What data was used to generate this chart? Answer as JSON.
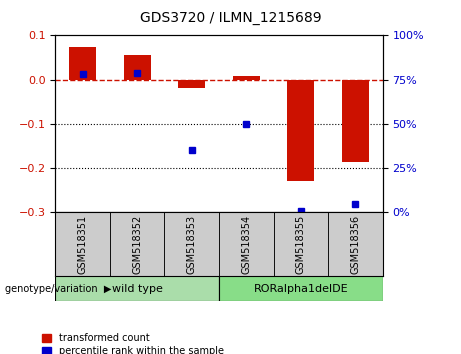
{
  "title": "GDS3720 / ILMN_1215689",
  "categories": [
    "GSM518351",
    "GSM518352",
    "GSM518353",
    "GSM518354",
    "GSM518355",
    "GSM518356"
  ],
  "red_values": [
    0.073,
    0.055,
    -0.018,
    0.008,
    -0.228,
    -0.185
  ],
  "blue_values_pct": [
    78,
    79,
    35,
    50,
    1,
    5
  ],
  "ylim_left": [
    -0.3,
    0.1
  ],
  "ylim_right": [
    0,
    100
  ],
  "yticks_left": [
    0.1,
    0.0,
    -0.1,
    -0.2,
    -0.3
  ],
  "yticks_right": [
    100,
    75,
    50,
    25,
    0
  ],
  "hlines_dotted": [
    -0.1,
    -0.2
  ],
  "bar_width": 0.5,
  "red_color": "#cc1100",
  "blue_color": "#0000cc",
  "legend_red": "transformed count",
  "legend_blue": "percentile rank within the sample",
  "figsize": [
    4.61,
    3.54
  ],
  "dpi": 100,
  "wt_color": "#aaddaa",
  "ror_color": "#88dd88",
  "gray_box_color": "#cccccc"
}
